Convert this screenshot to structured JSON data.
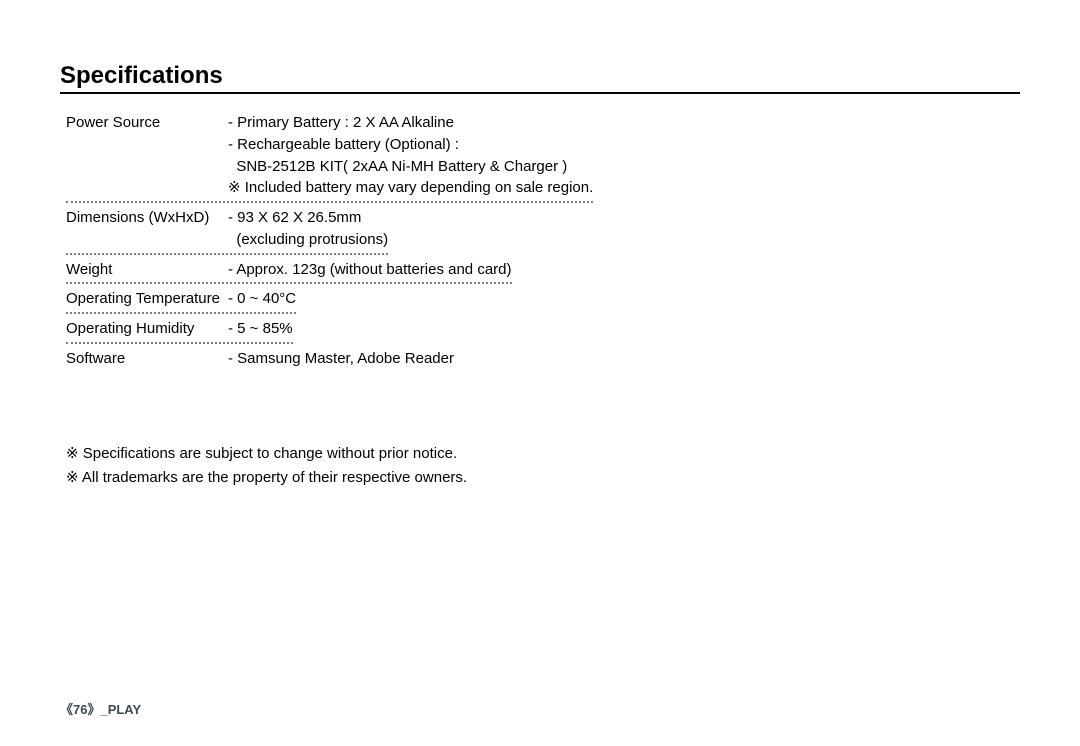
{
  "heading": "Specifications",
  "rows": [
    {
      "label": "Power Source",
      "lines": [
        "- Primary Battery : 2 X AA Alkaline",
        "- Rechargeable battery (Optional) :",
        "  SNB-2512B KIT( 2xAA Ni-MH Battery & Charger )",
        "※ Included battery may vary depending on sale region."
      ]
    },
    {
      "label": "Dimensions (WxHxD)",
      "lines": [
        "- 93 X 62 X 26.5mm",
        "  (excluding protrusions)"
      ]
    },
    {
      "label": "Weight",
      "lines": [
        "- Approx. 123g (without batteries and card)"
      ]
    },
    {
      "label": "Operating Temperature",
      "lines": [
        "- 0 ~ 40°C"
      ]
    },
    {
      "label": "Operating Humidity",
      "lines": [
        "- 5 ~ 85%"
      ]
    },
    {
      "label": "Software",
      "lines": [
        "- Samsung Master, Adobe Reader"
      ]
    }
  ],
  "notes": [
    "※ Specifications are subject to change without prior notice.",
    "※ All trademarks are the property of their respective owners."
  ],
  "footer": "《76》_PLAY",
  "colors": {
    "text": "#000000",
    "background": "#ffffff",
    "dotted_border": "#7d7d7d",
    "footer": "#3a4a52"
  },
  "typography": {
    "heading_fontsize": 24,
    "body_fontsize": 15,
    "footer_fontsize": 13
  }
}
